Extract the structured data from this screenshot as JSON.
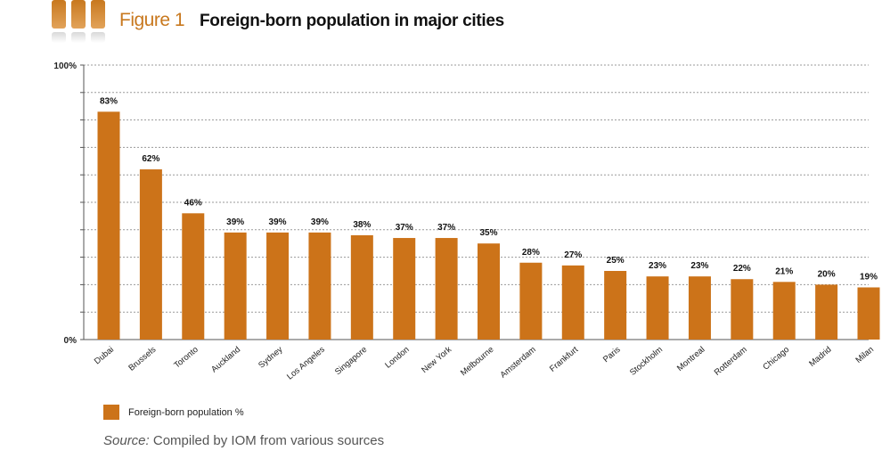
{
  "header": {
    "figure_label": "Figure 1",
    "title": "Foreign-born population in major cities"
  },
  "colors": {
    "bar": "#cc7319",
    "accent": "#c8781e",
    "grid": "#9a9a9a",
    "axis": "#555555"
  },
  "chart_data": {
    "type": "bar",
    "title": "Foreign-born population in major cities",
    "xlabel": "",
    "ylabel": "",
    "ylim": [
      0,
      100
    ],
    "y_tick_labels": [
      "0%",
      "100%"
    ],
    "grid": true,
    "legend_position": "bottom-left",
    "categories": [
      "Dubai",
      "Brussels",
      "Toronto",
      "Auckland",
      "Sydney",
      "Los Angeles",
      "Singapore",
      "London",
      "New York",
      "Melbourne",
      "Amsterdam",
      "Frankfurt",
      "Paris",
      "Stockholm",
      "Montreal",
      "Rotterdam",
      "Chicago",
      "Madrid",
      "Milan"
    ],
    "series": [
      {
        "name": "Foreign-born population %",
        "values": [
          83,
          62,
          46,
          39,
          39,
          39,
          38,
          37,
          37,
          35,
          28,
          27,
          25,
          23,
          23,
          22,
          21,
          20,
          19
        ],
        "labels": [
          "83%",
          "62%",
          "46%",
          "39%",
          "39%",
          "39%",
          "38%",
          "37%",
          "37%",
          "35%",
          "28%",
          "27%",
          "25%",
          "23%",
          "23%",
          "22%",
          "21%",
          "20%",
          "19%"
        ]
      }
    ]
  },
  "legend": {
    "label": "Foreign-born population %"
  },
  "source": {
    "prefix": "Source:",
    "text": " Compiled by IOM from various sources"
  }
}
